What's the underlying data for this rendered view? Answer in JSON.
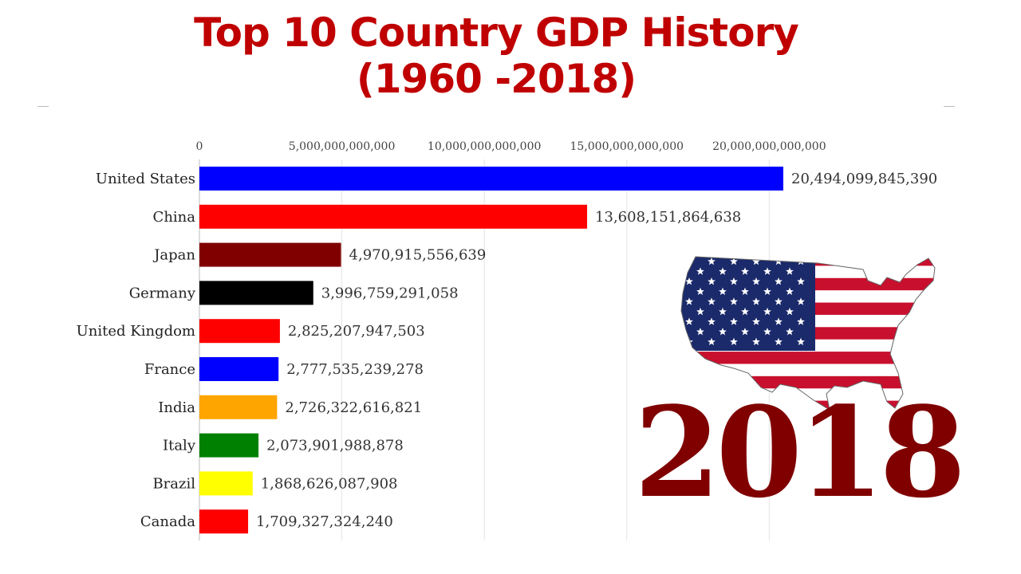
{
  "title_line1": "Top 10 Country GDP History",
  "title_line2": "(1960 -2018)",
  "year": "2018",
  "flag_icon": "usa-flag-map-icon",
  "chart_data": {
    "type": "bar",
    "orientation": "horizontal",
    "title": "Top 10 Country GDP History (1960 -2018)",
    "xlabel": "",
    "ylabel": "",
    "xlim": [
      0,
      20494099845390
    ],
    "x_ticks": [
      0,
      5000000000000,
      10000000000000,
      15000000000000,
      20000000000000
    ],
    "x_tick_labels": [
      "0",
      "5,000,000,000,000",
      "10,000,000,000,000",
      "15,000,000,000,000",
      "20,000,000,000,000"
    ],
    "x_axis_position": "top",
    "grid": true,
    "categories": [
      "United States",
      "China",
      "Japan",
      "Germany",
      "United Kingdom",
      "France",
      "India",
      "Italy",
      "Brazil",
      "Canada"
    ],
    "values": [
      20494099845390,
      13608151864638,
      4970915556639,
      3996759291058,
      2825207947503,
      2777535239278,
      2726322616821,
      2073901988878,
      1868626087908,
      1709327324240
    ],
    "value_labels": [
      "20,494,099,845,390",
      "13,608,151,864,638",
      "4,970,915,556,639",
      "3,996,759,291,058",
      "2,825,207,947,503",
      "2,777,535,239,278",
      "2,726,322,616,821",
      "2,073,901,988,878",
      "1,868,626,087,908",
      "1,709,327,324,240"
    ],
    "colors": [
      "#0000ff",
      "#ff0000",
      "#800000",
      "#000000",
      "#ff0000",
      "#0000ff",
      "#ffa500",
      "#008000",
      "#ffff00",
      "#ff0000"
    ]
  }
}
